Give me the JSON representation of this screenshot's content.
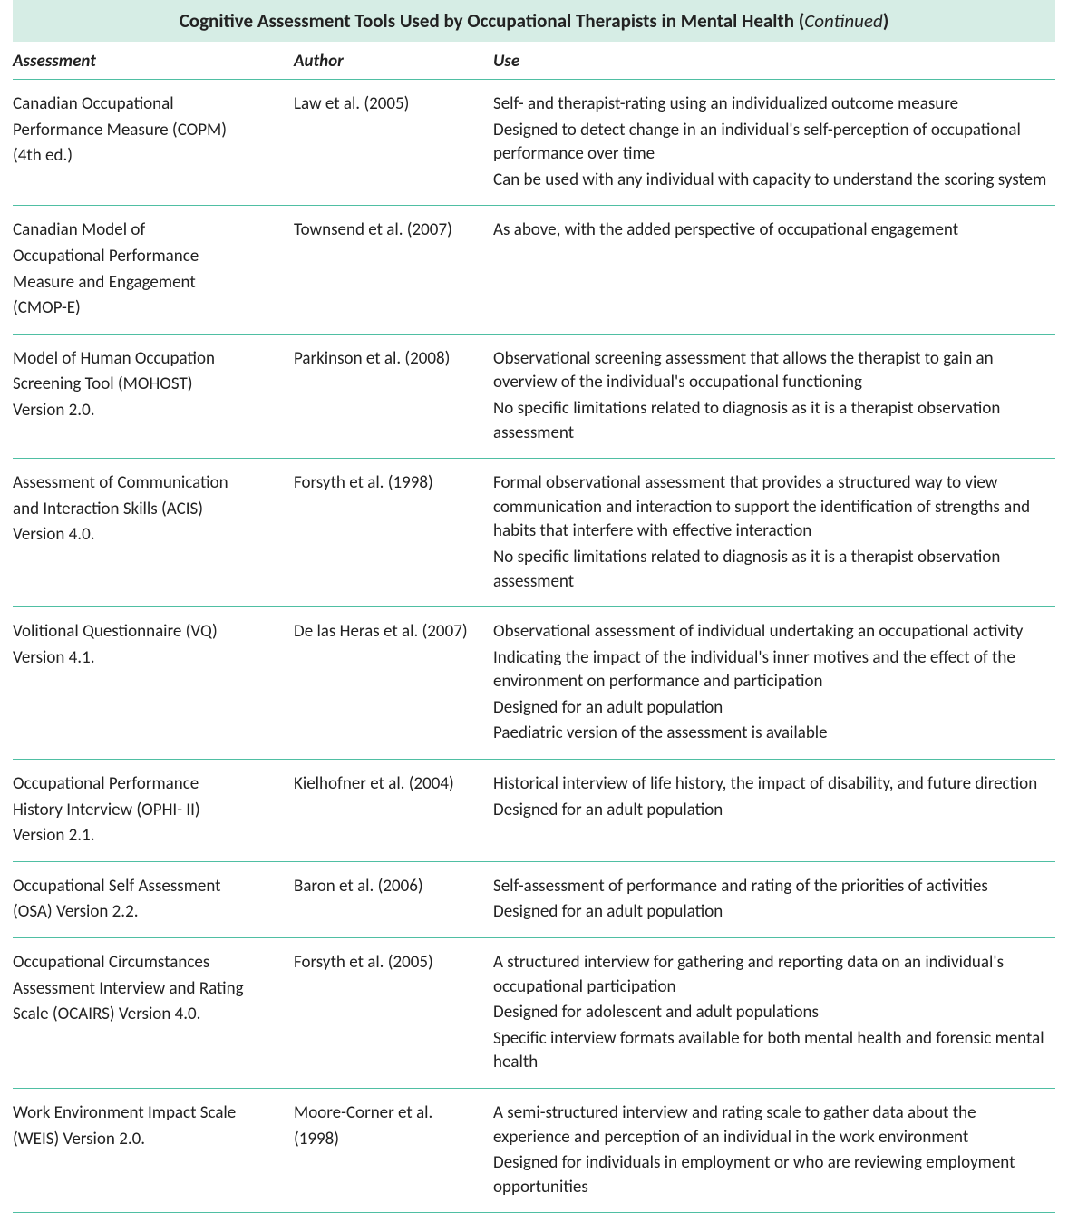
{
  "title": {
    "main": "Cognitive Assessment Tools Used by Occupational Therapists in Mental Health",
    "suffix": " (",
    "continued": "Continued",
    "suffix_close": ")"
  },
  "columns": [
    "Assessment",
    "Author",
    "Use"
  ],
  "colors": {
    "header_bg": "#d6ede5",
    "rule": "#4fbfa3",
    "text": "#222222",
    "page_bg": "#ffffff"
  },
  "rows": [
    {
      "assessment": [
        "Canadian Occupational",
        "Performance Measure (COPM)",
        "(4th ed.)"
      ],
      "author": [
        "Law et al. (2005)"
      ],
      "use": [
        "Self- and therapist-rating using an individualized outcome measure",
        "Designed to detect change in an individual's self-perception of occupational performance over time",
        "Can be used with any individual with capacity to understand the scoring system"
      ]
    },
    {
      "assessment": [
        "Canadian Model of",
        "Occupational Performance",
        "Measure and Engagement",
        "(CMOP-E)"
      ],
      "author": [
        "Townsend et al. (2007)"
      ],
      "use": [
        "As above, with the added perspective of occupational engagement"
      ]
    },
    {
      "assessment": [
        "Model of Human Occupation",
        "Screening Tool (MOHOST)",
        "Version 2.0."
      ],
      "author": [
        "Parkinson et al. (2008)"
      ],
      "use": [
        "Observational screening assessment that allows the therapist to gain an overview of the individual's occupational functioning",
        "No specific limitations related to diagnosis as it is a therapist observation assessment"
      ]
    },
    {
      "assessment": [
        "Assessment of Communication",
        "and Interaction Skills (ACIS)",
        "Version 4.0."
      ],
      "author": [
        "Forsyth et al. (1998)"
      ],
      "use": [
        "Formal observational assessment that provides a structured way to view communication and interaction to support the identification of strengths and habits that interfere with effective interaction",
        "No specific limitations related to diagnosis as it is a therapist observation assessment"
      ]
    },
    {
      "assessment": [
        "Volitional Questionnaire (VQ)",
        "Version 4.1."
      ],
      "author": [
        "De las Heras et al. (2007)"
      ],
      "use": [
        "Observational assessment of individual undertaking an occupational activity",
        "Indicating the impact of the individual's inner motives and the effect of the environment on performance and participation",
        "Designed for an adult population",
        "Paediatric version of the assessment is available"
      ]
    },
    {
      "assessment": [
        "Occupational Performance",
        "History Interview (OPHI- II)",
        "Version 2.1."
      ],
      "author": [
        "Kielhofner et al. (2004)"
      ],
      "use": [
        "Historical interview of life history, the impact of disability, and future direction",
        "Designed for an adult population"
      ]
    },
    {
      "assessment": [
        "Occupational Self Assessment",
        "(OSA) Version 2.2."
      ],
      "author": [
        "Baron et al. (2006)"
      ],
      "use": [
        "Self-assessment of performance and rating of the priorities of activities",
        "Designed for an adult population"
      ]
    },
    {
      "assessment": [
        "Occupational Circumstances",
        "Assessment Interview and Rating",
        "Scale (OCAIRS) Version 4.0."
      ],
      "author": [
        "Forsyth et al. (2005)"
      ],
      "use": [
        "A structured interview for gathering and reporting data on an individual's occupational participation",
        "Designed for adolescent and adult populations",
        "Specific interview formats available for both mental health and forensic mental health"
      ]
    },
    {
      "assessment": [
        "Work Environment Impact Scale",
        "(WEIS) Version 2.0."
      ],
      "author": [
        "Moore-Corner et al.",
        "(1998)"
      ],
      "use": [
        "A semi-structured interview and rating scale to gather data about the experience and perception of an individual in the work environment",
        "Designed for individuals in employment or who are reviewing employment opportunities"
      ]
    }
  ]
}
